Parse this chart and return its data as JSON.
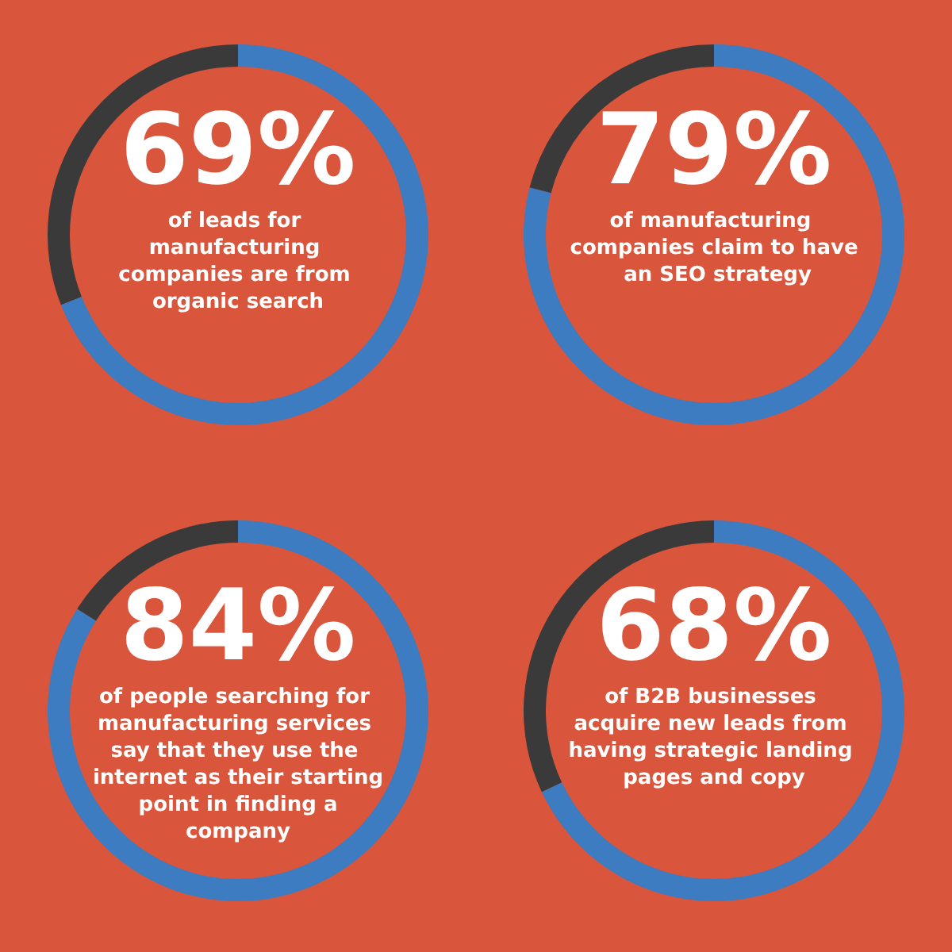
{
  "chart_data": [
    {
      "type": "donut",
      "title": "69%",
      "subtitle": "of leads for manufacturing companies are from organic search",
      "categories": [
        null,
        null
      ],
      "values": [
        69,
        31
      ],
      "colors": [
        "#3d7cc0",
        "#3a3a3a"
      ]
    },
    {
      "type": "donut",
      "title": "79%",
      "subtitle": "of manufacturing companies claim to have an SEO strategy",
      "categories": [
        null,
        null
      ],
      "values": [
        79,
        21
      ],
      "colors": [
        "#3d7cc0",
        "#3a3a3a"
      ]
    },
    {
      "type": "donut",
      "title": "84%",
      "subtitle": "of people searching for manufacturing services say that they use the internet as their starting point in finding a company",
      "categories": [
        null,
        null
      ],
      "values": [
        84,
        16
      ],
      "colors": [
        "#3d7cc0",
        "#3a3a3a"
      ]
    },
    {
      "type": "donut",
      "title": "68%",
      "subtitle": "of B2B businesses acquire new leads from having strategic landing pages and copy",
      "categories": [
        null,
        null
      ],
      "values": [
        68,
        32
      ],
      "colors": [
        "#3d7cc0",
        "#3a3a3a"
      ]
    }
  ]
}
